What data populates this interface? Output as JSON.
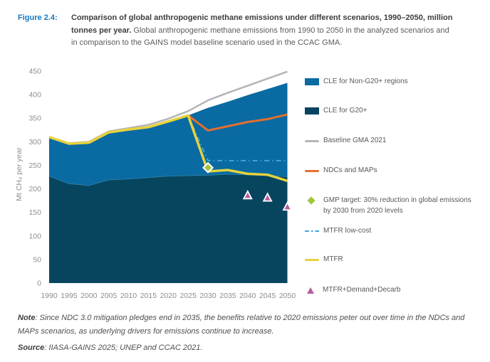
{
  "header": {
    "figure_label": "Figure 2.4:",
    "figure_label_color": "#1778bc",
    "title_bold": "Comparison of global anthropogenic methane emissions under different scenarios, 1990–2050, million tonnes per year.",
    "title_rest": " Global anthropogenic methane emissions from 1990 to 2050 in the analyzed scenarios and in comparison to the GAINS model baseline scenario used in the CCAC GMA."
  },
  "chart_data": {
    "type": "area",
    "title": "",
    "ylabel": "Mt CH₄ per year",
    "xlabel": "",
    "ylim": [
      0,
      450
    ],
    "ytick_step": 50,
    "x": [
      1990,
      1995,
      2000,
      2005,
      2010,
      2015,
      2020,
      2025,
      2030,
      2035,
      2040,
      2045,
      2050
    ],
    "areas": [
      {
        "name": "CLE for G20+",
        "color": "#07455f",
        "edge_color": "#2e85ae",
        "values": [
          227,
          211,
          207,
          219,
          221,
          224,
          227,
          228,
          229,
          231,
          230,
          228,
          226
        ]
      },
      {
        "name": "CLE for Non-G20+ regions",
        "color": "#0a6aa2",
        "values_total": [
          310,
          296,
          298,
          320,
          326,
          331,
          343,
          356,
          372,
          385,
          399,
          412,
          425
        ]
      }
    ],
    "series": [
      {
        "name": "Baseline GMA 2021",
        "color": "#b4b4b6",
        "width": 2.5,
        "values": [
          310,
          297,
          300,
          322,
          329,
          336,
          349,
          365,
          388,
          404,
          419,
          434,
          449
        ]
      },
      {
        "name": "MTFR low-cost",
        "color": "#42a4d6",
        "width": 2,
        "dash": "7 4 1.5 4",
        "points": [
          [
            2025,
            356
          ],
          [
            2030,
            260
          ],
          [
            2050,
            260
          ]
        ]
      },
      {
        "name": "NDCs and MAPs",
        "color": "#e2702d",
        "width": 3,
        "values": [
          null,
          null,
          null,
          null,
          null,
          null,
          null,
          356,
          324,
          333,
          342,
          348,
          358
        ]
      },
      {
        "name": "MTFR",
        "color": "#e6d23c",
        "width": 3.5,
        "values": [
          310,
          296,
          298,
          320,
          326,
          331,
          343,
          356,
          237,
          240,
          232,
          230,
          217
        ]
      }
    ],
    "markers": [
      {
        "name": "GMP target: 30% reduction in global emissions by 2030 from 2020 levels",
        "shape": "diamond",
        "color": "#a2c63b",
        "points": [
          [
            2030,
            245
          ]
        ]
      },
      {
        "name": "MTFR+Demand+Decarb",
        "shape": "triangle",
        "color": "#b85da0",
        "points": [
          [
            2040,
            186
          ],
          [
            2045,
            181
          ],
          [
            2050,
            162
          ]
        ]
      }
    ]
  },
  "legend": {
    "items": [
      {
        "label": "CLE for Non-G20+ regions",
        "swatch": "rect",
        "color": "#0a6aa2"
      },
      {
        "label": "CLE for G20+",
        "swatch": "rect",
        "color": "#07455f"
      },
      {
        "label": "Baseline GMA 2021",
        "swatch": "line",
        "color": "#b4b4b6"
      },
      {
        "label": "NDCs and MAPs",
        "swatch": "line",
        "color": "#e2702d"
      },
      {
        "label": "GMP target: 30% reduction in global emissions by 2030 from 2020 levels",
        "swatch": "diamond",
        "color": "#a2c63b"
      },
      {
        "label": "MTFR low-cost",
        "swatch": "dashdot",
        "color": "#42a4d6"
      },
      {
        "label": "MTFR",
        "swatch": "line",
        "color": "#e6d23c"
      },
      {
        "label": "MTFR+Demand+Decarb",
        "swatch": "triangle",
        "color": "#b85da0"
      }
    ]
  },
  "notes": {
    "note_label": "Note",
    "note_text": ": Since NDC 3.0 mitigation pledges end in 2035, the benefits relative to 2020 emissions peter out over time in the NDCs and MAPs scenarios, as underlying drivers for emissions continue to increase.",
    "source_label": "Source",
    "source_text": ": IIASA-GAINS 2025; UNEP and CCAC 2021."
  },
  "axis_style": {
    "tick_color": "#8e8e8e"
  }
}
